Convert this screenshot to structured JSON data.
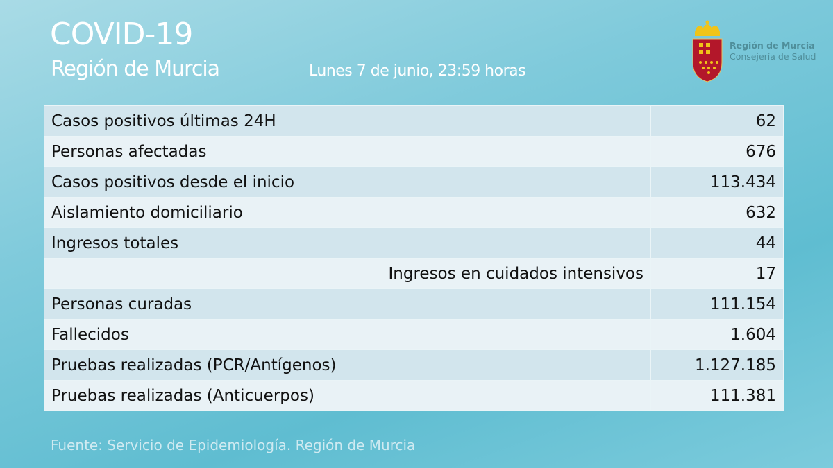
{
  "header": {
    "title": "COVID-19",
    "subtitle": "Región de Murcia",
    "date": "Lunes 7 de junio, 23:59 horas"
  },
  "logo": {
    "line1": "Región de Murcia",
    "line2": "Consejería de Salud",
    "icon": "coat-of-arms-icon",
    "colors": {
      "shield": "#b3172a",
      "crown": "#f0c419"
    }
  },
  "table": {
    "rows": [
      {
        "label": "Casos positivos últimas 24H",
        "value": "62"
      },
      {
        "label": "Personas afectadas",
        "value": "676"
      },
      {
        "label": "Casos positivos desde el inicio",
        "value": "113.434"
      },
      {
        "label": "Aislamiento domiciliario",
        "value": "632"
      },
      {
        "label": "Ingresos totales",
        "value": "44"
      },
      {
        "label": "Ingresos en cuidados intensivos",
        "value": "17",
        "indented": true
      },
      {
        "label": "Personas curadas",
        "value": "111.154"
      },
      {
        "label": "Fallecidos",
        "value": "1.604"
      },
      {
        "label": "Pruebas realizadas (PCR/Antígenos)",
        "value": "1.127.185"
      },
      {
        "label": "Pruebas realizadas (Anticuerpos)",
        "value": "111.381"
      }
    ]
  },
  "footer": {
    "source": "Fuente: Servicio de Epidemiología. Región de Murcia"
  }
}
